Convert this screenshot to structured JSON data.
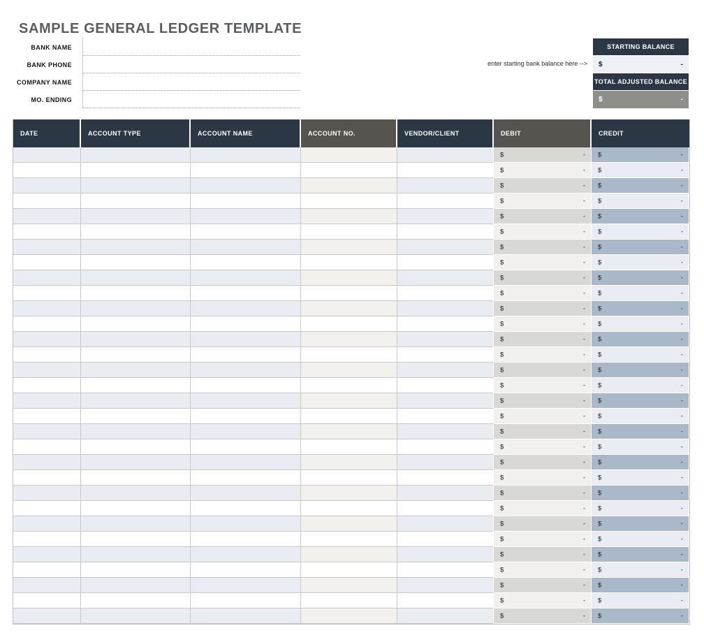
{
  "page": {
    "title": "SAMPLE GENERAL LEDGER TEMPLATE"
  },
  "form": {
    "fields": [
      {
        "label": "BANK NAME",
        "value": ""
      },
      {
        "label": "BANK PHONE",
        "value": ""
      },
      {
        "label": "COMPANY NAME",
        "value": ""
      },
      {
        "label": "MO. ENDING",
        "value": ""
      }
    ]
  },
  "balances": {
    "note": "enter starting bank balance here -->",
    "starting": {
      "header": "STARTING BALANCE",
      "currency": "$",
      "amount": "-"
    },
    "total_adjusted": {
      "header": "TOTAL ADJUSTED BALANCE",
      "currency": "$",
      "amount": "-"
    }
  },
  "ledger_table": {
    "columns": [
      {
        "key": "date",
        "label": "DATE",
        "theme": "navy",
        "type": "text"
      },
      {
        "key": "account_type",
        "label": "ACCOUNT TYPE",
        "theme": "navy",
        "type": "text"
      },
      {
        "key": "account_name",
        "label": "ACCOUNT NAME",
        "theme": "navy",
        "type": "text"
      },
      {
        "key": "account_no",
        "label": "ACCOUNT NO.",
        "theme": "gray",
        "type": "text"
      },
      {
        "key": "vendor_client",
        "label": "VENDOR/CLIENT",
        "theme": "navy",
        "type": "text"
      },
      {
        "key": "debit",
        "label": "DEBIT",
        "theme": "gray",
        "type": "money"
      },
      {
        "key": "credit",
        "label": "CREDIT",
        "theme": "navy",
        "type": "money"
      }
    ],
    "row_count": 31,
    "empty_money_cell": {
      "currency": "$",
      "amount": "-"
    }
  },
  "colors": {
    "header_navy": "#2b3745",
    "header_gray": "#57534e",
    "stripe_blue": "#e9ecf2",
    "stripe_warm": "#f2f1ee",
    "debit_stripe": "#d8d8d4",
    "debit_light": "#f1f0ee",
    "credit_stripe": "#aab9c9",
    "credit_light": "#e9edf3",
    "starting_row_bg": "#edf1f5",
    "total_row_bg": "#8e8e8b",
    "title_gray": "#5b5c5e"
  }
}
